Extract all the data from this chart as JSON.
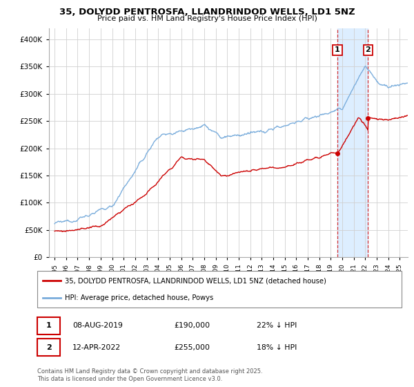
{
  "title_line1": "35, DOLYDD PENTROSFA, LLANDRINDOD WELLS, LD1 5NZ",
  "title_line2": "Price paid vs. HM Land Registry's House Price Index (HPI)",
  "legend_label_red": "35, DOLYDD PENTROSFA, LLANDRINDOD WELLS, LD1 5NZ (detached house)",
  "legend_label_blue": "HPI: Average price, detached house, Powys",
  "footer": "Contains HM Land Registry data © Crown copyright and database right 2025.\nThis data is licensed under the Open Government Licence v3.0.",
  "transaction1_date": "08-AUG-2019",
  "transaction1_price": "£190,000",
  "transaction1_hpi": "22% ↓ HPI",
  "transaction2_date": "12-APR-2022",
  "transaction2_price": "£255,000",
  "transaction2_hpi": "18% ↓ HPI",
  "vline1_x": 2019.58,
  "vline2_x": 2022.25,
  "marker1_x": 2019.58,
  "marker1_y": 190000,
  "marker2_x": 2022.25,
  "marker2_y": 255000,
  "ylim": [
    0,
    420000
  ],
  "xlim_left": 1994.5,
  "xlim_right": 2025.7,
  "bg_shade_start": 2019.58,
  "bg_shade_end": 2022.25,
  "red_color": "#cc0000",
  "blue_color": "#7aaddc",
  "shade_color": "#ddeeff",
  "grid_color": "#d0d0d0",
  "box_edge_color": "#cc0000"
}
